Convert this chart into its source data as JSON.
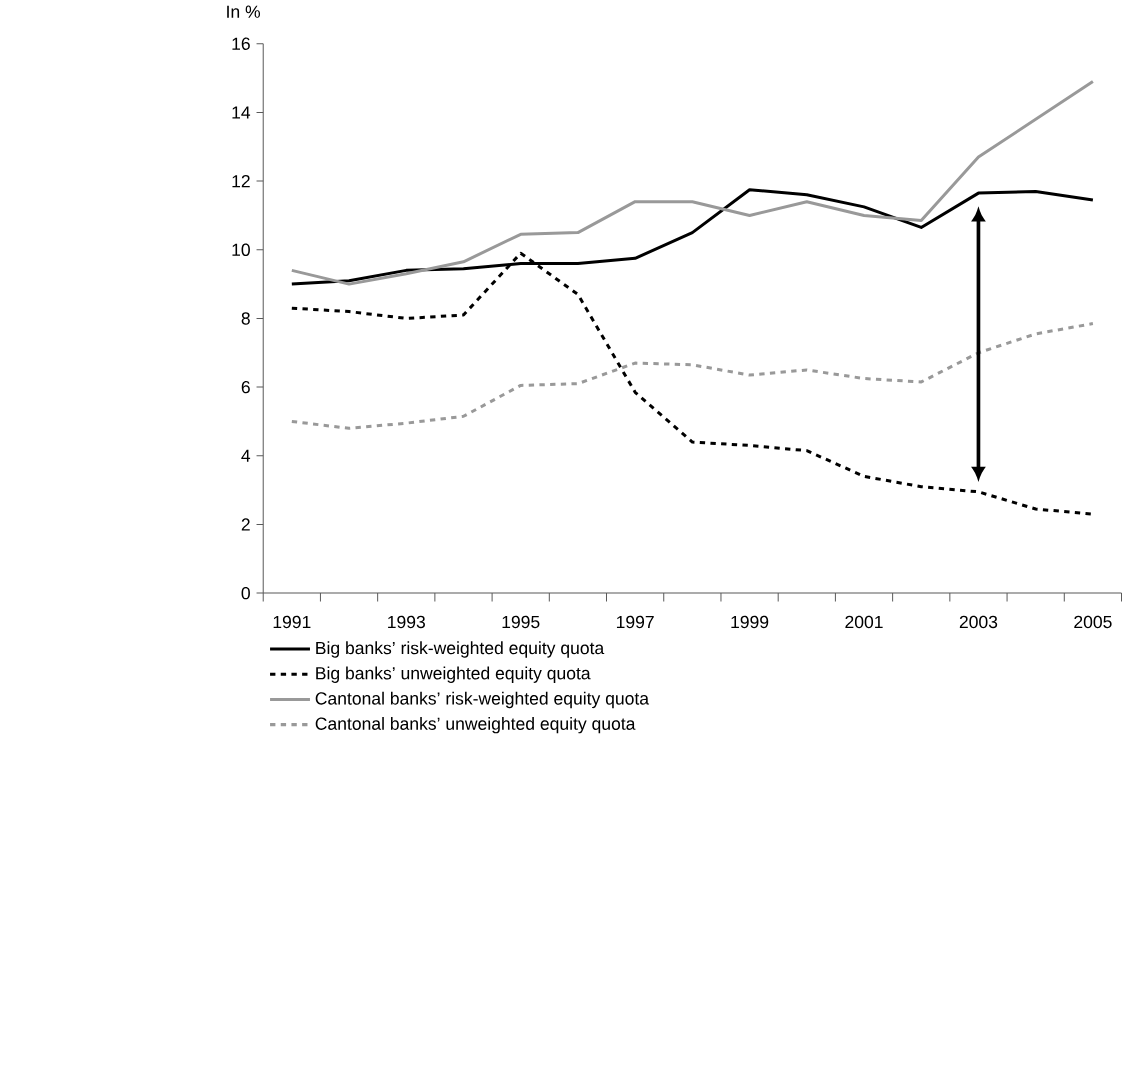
{
  "chart_data": {
    "type": "line",
    "ylabel": "In %",
    "categories": [
      "1991",
      null,
      "1993",
      null,
      "1995",
      null,
      "1997",
      null,
      "1999",
      null,
      "2001",
      null,
      "2003",
      null,
      "2005"
    ],
    "series": [
      {
        "name": "Big banks’ risk-weighted equity quota",
        "color": "#000000",
        "line_style": "solid",
        "values": [
          9.0,
          9.1,
          9.4,
          9.45,
          9.6,
          9.6,
          9.75,
          10.5,
          11.75,
          11.6,
          11.25,
          10.65,
          11.65,
          11.7,
          11.45
        ]
      },
      {
        "name": "Big banks’ unweighted equity quota",
        "color": "#000000",
        "line_style": "dashed",
        "values": [
          8.3,
          8.2,
          8.0,
          8.1,
          9.9,
          8.7,
          5.85,
          4.4,
          4.3,
          4.15,
          3.4,
          3.1,
          2.95,
          2.45,
          2.3
        ]
      },
      {
        "name": "Cantonal banks’ risk-weighted equity quota",
        "color": "#999999",
        "line_style": "solid",
        "values": [
          9.4,
          9.0,
          9.3,
          9.65,
          10.45,
          10.5,
          11.4,
          11.4,
          11.0,
          11.4,
          11.0,
          10.85,
          12.7,
          13.8,
          14.9
        ]
      },
      {
        "name": "Cantonal banks’ unweighted equity quota",
        "color": "#999999",
        "line_style": "dashed",
        "values": [
          5.0,
          4.8,
          4.95,
          5.15,
          6.05,
          6.1,
          6.7,
          6.65,
          6.35,
          6.5,
          6.25,
          6.15,
          7.0,
          7.55,
          7.85
        ]
      }
    ],
    "ylim": [
      0,
      16
    ],
    "yticks": [
      0,
      2,
      4,
      6,
      8,
      10,
      12,
      14,
      16
    ],
    "legend": "bottom"
  }
}
